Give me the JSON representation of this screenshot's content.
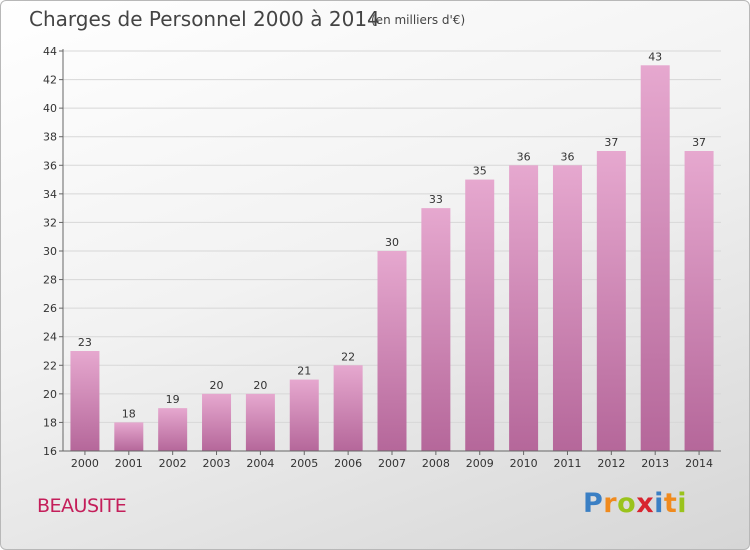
{
  "title": "Charges de Personnel 2000 à 2014",
  "subtitle": "(en milliers d'€)",
  "place": "BEAUSITE",
  "logo": {
    "text": "Proxiti",
    "letters": [
      "P",
      "r",
      "o",
      "x",
      "i",
      "t",
      "i"
    ],
    "colors": [
      "#3a7fc4",
      "#f08a1d",
      "#9ac31c",
      "#d8242f",
      "#3a7fc4",
      "#f08a1d",
      "#9ac31c"
    ]
  },
  "colors": {
    "bar_top": "#e6a8cf",
    "bar_bottom": "#b5679a",
    "axis": "#666666",
    "grid": "#d7d7d7",
    "place": "#c41e5a"
  },
  "chart_data": {
    "type": "bar",
    "title": "Charges de Personnel 2000 à 2014",
    "subtitle": "(en milliers d'€)",
    "categories": [
      "2000",
      "2001",
      "2002",
      "2003",
      "2004",
      "2005",
      "2006",
      "2007",
      "2008",
      "2009",
      "2010",
      "2011",
      "2012",
      "2013",
      "2014"
    ],
    "values": [
      23,
      18,
      19,
      20,
      20,
      21,
      22,
      30,
      33,
      35,
      36,
      36,
      37,
      43,
      37
    ],
    "ylim": [
      16,
      44
    ],
    "yticks": [
      16,
      18,
      20,
      22,
      24,
      26,
      28,
      30,
      32,
      34,
      36,
      38,
      40,
      42,
      44
    ],
    "grid": true,
    "legend": "none"
  }
}
